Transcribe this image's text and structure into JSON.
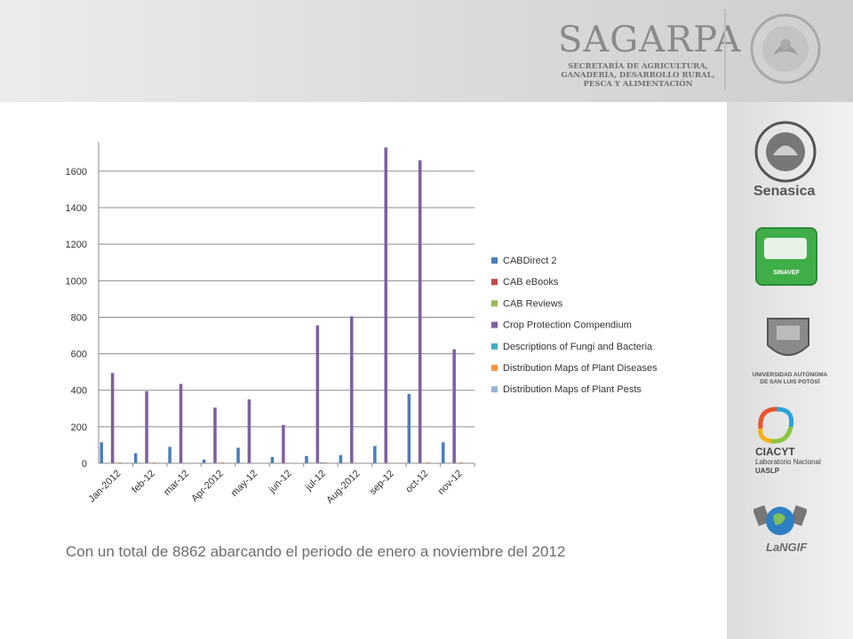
{
  "header": {
    "brand": "SAGARPA",
    "subtitle_lines": [
      "SECRETARÍA DE AGRICULTURA,",
      "GANADERÍA, DESARROLLO RURAL,",
      "PESCA Y ALIMENTACIÓN"
    ]
  },
  "sidebar": {
    "senasica": "Senasica",
    "sinavef": "SINAVEF",
    "uaslp_lines": [
      "UNIVERSIDAD AUTÓNOMA",
      "DE SAN LUIS POTOSÍ"
    ],
    "ciacyt_lines": [
      "CIACYT",
      "Laboratorio Nacional",
      "UASLP"
    ],
    "langif": "LaNGIF"
  },
  "caption": "Con un total de 8862 abarcando el periodo de enero a noviembre del 2012",
  "colors": {
    "cabdirect": "#4a7ebb",
    "ebooks": "#be4b48",
    "reviews": "#98b954",
    "cpc": "#7d60a0",
    "fungi": "#46aac4",
    "maps_diseases": "#f79646",
    "maps_pests": "#95b3d7"
  },
  "chart_data": {
    "type": "bar",
    "categories": [
      "Jan-2012",
      "feb-12",
      "mar-12",
      "Apr-2012",
      "may-12",
      "jun-12",
      "jul-12",
      "Aug-2012",
      "sep-12",
      "oct-12",
      "nov-12"
    ],
    "ylim": [
      0,
      1760
    ],
    "yticks": [
      0,
      200,
      400,
      600,
      800,
      1000,
      1200,
      1400,
      1600
    ],
    "grid": true,
    "legend_position": "right",
    "series": [
      {
        "name": "CABDirect 2",
        "color": "#4a7ebb",
        "values": [
          115,
          55,
          90,
          20,
          85,
          35,
          40,
          45,
          95,
          380,
          115
        ]
      },
      {
        "name": "CAB eBooks",
        "color": "#be4b48",
        "values": [
          0,
          0,
          0,
          0,
          0,
          0,
          0,
          0,
          0,
          0,
          0
        ]
      },
      {
        "name": "CAB Reviews",
        "color": "#98b954",
        "values": [
          0,
          0,
          0,
          0,
          0,
          0,
          0,
          0,
          0,
          0,
          0
        ]
      },
      {
        "name": "Crop Protection Compendium",
        "color": "#7d60a0",
        "values": [
          495,
          395,
          435,
          305,
          350,
          210,
          755,
          805,
          1730,
          1660,
          625
        ]
      },
      {
        "name": "Descriptions of Fungi and Bacteria",
        "color": "#46aac4",
        "values": [
          0,
          0,
          0,
          0,
          0,
          0,
          5,
          0,
          0,
          0,
          0
        ]
      },
      {
        "name": "Distribution Maps of Plant Diseases",
        "color": "#f79646",
        "values": [
          5,
          5,
          0,
          5,
          0,
          0,
          5,
          0,
          0,
          5,
          5
        ]
      },
      {
        "name": "Distribution Maps of Plant Pests",
        "color": "#95b3d7",
        "values": [
          0,
          0,
          0,
          0,
          0,
          0,
          0,
          0,
          0,
          0,
          0
        ]
      }
    ]
  }
}
